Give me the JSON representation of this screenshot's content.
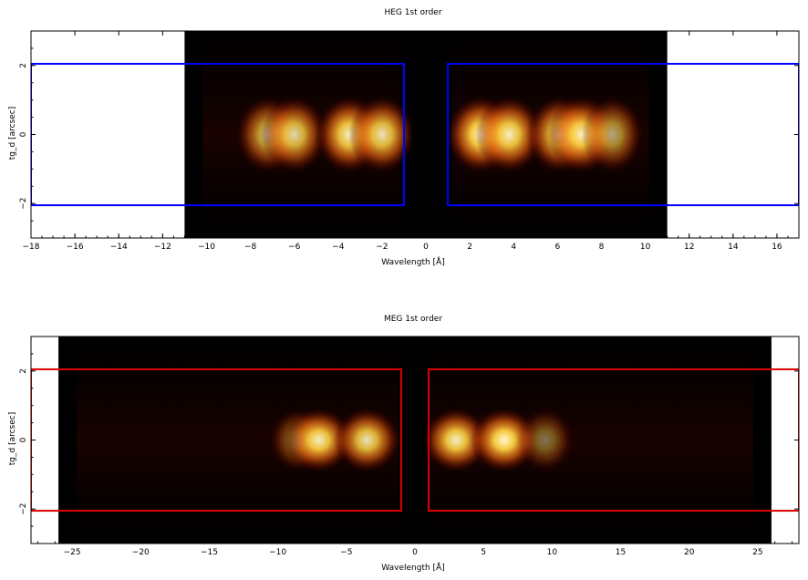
{
  "chart_data": [
    {
      "type": "heatmap",
      "title": "HEG 1st order",
      "xlabel": "Wavelength [Å]",
      "ylabel": "tg_d [arcsec]",
      "xlim": [
        -18,
        17
      ],
      "ylim": [
        -3,
        3
      ],
      "xticks": [
        -18,
        -16,
        -14,
        -12,
        -10,
        -8,
        -6,
        -4,
        -2,
        0,
        2,
        4,
        6,
        8,
        10,
        12,
        14,
        16
      ],
      "yticks": [
        -2,
        0,
        2
      ],
      "data_extent": {
        "x": [
          -11,
          11
        ],
        "y": [
          -3,
          3
        ]
      },
      "regions": [
        {
          "x": [
            -18,
            -1
          ],
          "y": [
            -2.05,
            2.05
          ]
        },
        {
          "x": [
            1,
            17
          ],
          "y": [
            -2.05,
            2.05
          ]
        }
      ],
      "region_color": "#0000ff",
      "intensity": {
        "y_center": 0,
        "y_halfwidth": 0.9,
        "peaks": [
          {
            "x": -7.2,
            "value": 0.75
          },
          {
            "x": -6.0,
            "value": 0.85
          },
          {
            "x": -3.5,
            "value": 0.95
          },
          {
            "x": -2.0,
            "value": 0.9
          },
          {
            "x": 2.5,
            "value": 1.0
          },
          {
            "x": 3.8,
            "value": 0.95
          },
          {
            "x": 6.1,
            "value": 0.9
          },
          {
            "x": 7.1,
            "value": 0.95
          },
          {
            "x": 8.5,
            "value": 0.65
          }
        ]
      }
    },
    {
      "type": "heatmap",
      "title": "MEG 1st order",
      "xlabel": "Wavelength [Å]",
      "ylabel": "tg_d [arcsec]",
      "xlim": [
        -28,
        28
      ],
      "ylim": [
        -3,
        3
      ],
      "xticks": [
        -25,
        -20,
        -15,
        -10,
        -5,
        0,
        5,
        10,
        15,
        20,
        25
      ],
      "yticks": [
        -2,
        0,
        2
      ],
      "data_extent": {
        "x": [
          -26,
          26
        ],
        "y": [
          -3,
          3
        ]
      },
      "regions": [
        {
          "x": [
            -28,
            -1
          ],
          "y": [
            -2.05,
            2.05
          ]
        },
        {
          "x": [
            1,
            28
          ],
          "y": [
            -2.05,
            2.05
          ]
        }
      ],
      "region_color": "#dd0000",
      "intensity": {
        "y_center": 0,
        "y_halfwidth": 0.75,
        "peaks": [
          {
            "x": -8.5,
            "value": 0.5
          },
          {
            "x": -7.0,
            "value": 0.95
          },
          {
            "x": -3.5,
            "value": 0.9
          },
          {
            "x": 3.0,
            "value": 0.95
          },
          {
            "x": 6.5,
            "value": 1.0
          },
          {
            "x": 9.5,
            "value": 0.45
          }
        ]
      }
    }
  ]
}
